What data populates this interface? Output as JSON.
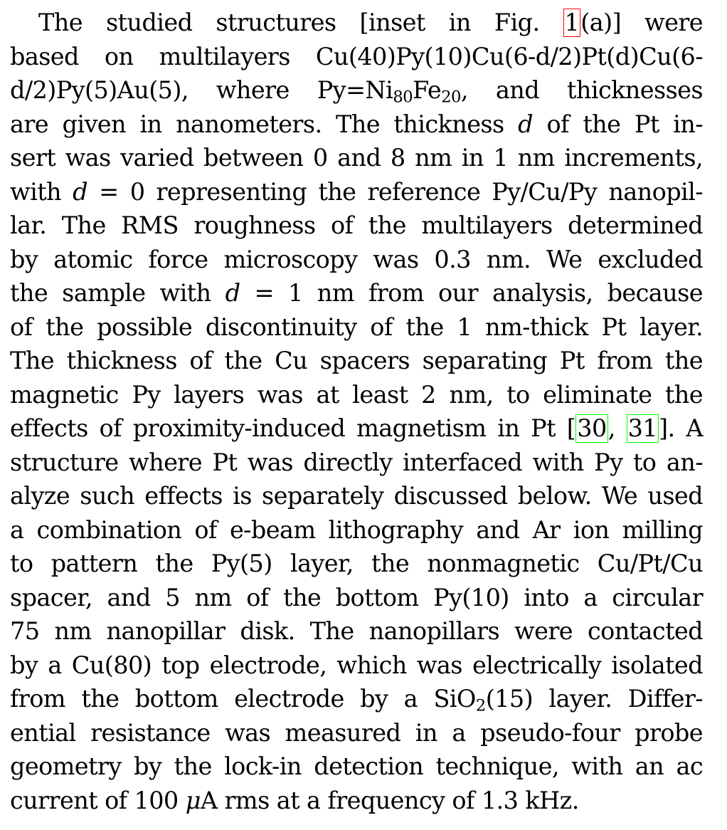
{
  "paragraph": {
    "l1a": "The studied structures [inset in Fig. ",
    "ref_fig": "1",
    "l1b": "(a)] were",
    "l2": "based on multilayers Cu(40)Py(10)Cu(6-d/2)Pt(d)Cu(6-",
    "l3a": "d/2)Py(5)Au(5), where Py=Ni",
    "l3_sub1": "80",
    "l3b": "Fe",
    "l3_sub2": "20",
    "l3c": ", and thicknesses",
    "l4a": "are given in nanometers. The thickness ",
    "l4_var": "d",
    "l4b": " of the Pt in-",
    "l5": "sert was varied between 0 and 8 nm in 1 nm increments,",
    "l6a": "with ",
    "l6_var": "d",
    "l6b": " = 0 representing the reference Py/Cu/Py nanopil-",
    "l7": "lar. The RMS roughness of the multilayers determined",
    "l8": "by atomic force microscopy was 0.3 nm. We excluded",
    "l9a": "the sample with ",
    "l9_var": "d",
    "l9b": " = 1 nm from our analysis, because",
    "l10": "of the possible discontinuity of the 1 nm-thick Pt layer.",
    "l11": "The thickness of the Cu spacers separating Pt from the",
    "l12": "magnetic Py layers was at least 2 nm, to eliminate the",
    "l13a": "effects of proximity-induced magnetism in Pt [",
    "ref_cite1": "30",
    "l13b": ", ",
    "ref_cite2": "31",
    "l13c": "]. A",
    "l14": "structure where Pt was directly interfaced with Py to an-",
    "l15": "alyze such effects is separately discussed below. We used",
    "l16": "a combination of e-beam lithography and Ar ion milling",
    "l17": "to pattern the Py(5) layer, the nonmagnetic Cu/Pt/Cu",
    "l18": "spacer, and 5 nm of the bottom Py(10) into a circular",
    "l19": "75 nm nanopillar disk. The nanopillars were contacted",
    "l20": "by a Cu(80) top electrode, which was electrically isolated",
    "l21a": "from the bottom electrode by a SiO",
    "l21_sub": "2",
    "l21b": "(15) layer. Differ-",
    "l22": "ential resistance was measured in a pseudo-four probe",
    "l23": "geometry by the lock-in detection technique, with an ac",
    "l24a": "current of 100 ",
    "l24_mu": "μ",
    "l24b": "A rms at a frequency of 1.3 kHz."
  },
  "colors": {
    "figure_ref_box": "#ff0000",
    "citation_ref_box": "#00ff00",
    "text": "#000000"
  }
}
